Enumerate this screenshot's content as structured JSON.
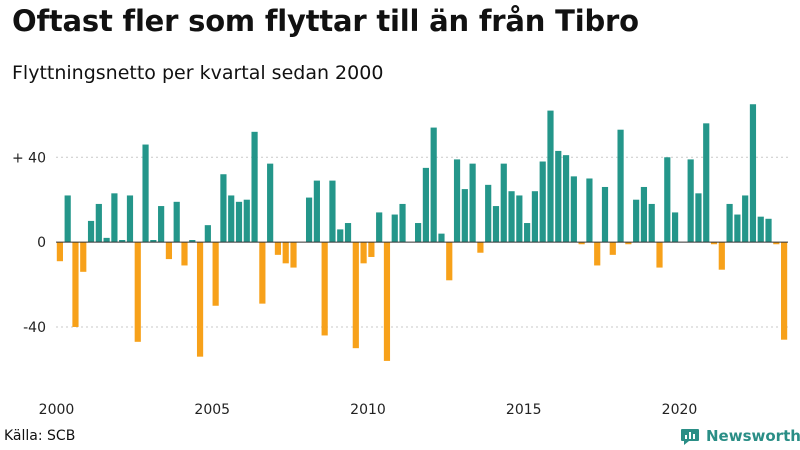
{
  "header": {
    "title": "Oftast fler som flyttar till än från Tibro",
    "subtitle": "Flyttningsnetto per kvartal sedan 2000"
  },
  "footer": {
    "source": "Källa: SCB",
    "brand": "Newsworthy"
  },
  "colors": {
    "positive": "#24968a",
    "negative": "#f7a11a",
    "brand": "#2a8e86",
    "zero_line": "#333333"
  },
  "chart_data": {
    "type": "bar",
    "title": "Oftast fler som flyttar till än från Tibro",
    "subtitle": "Flyttningsnetto per kvartal sedan 2000",
    "xlabel": "",
    "ylabel": "",
    "ylim": [
      -65,
      67
    ],
    "yticks": [
      {
        "value": 40,
        "label": "+ 40"
      },
      {
        "value": 0,
        "label": "0"
      },
      {
        "value": -40,
        "label": "-40"
      }
    ],
    "xticks": [
      {
        "value": 2000,
        "label": "2000"
      },
      {
        "value": 2005,
        "label": "2005"
      },
      {
        "value": 2010,
        "label": "2010"
      },
      {
        "value": 2015,
        "label": "2015"
      },
      {
        "value": 2020,
        "label": "2020"
      }
    ],
    "start_year": 2000,
    "periods_per_year": 4,
    "values": [
      -9,
      22,
      -40,
      -14,
      10,
      18,
      2,
      23,
      1,
      22,
      -47,
      46,
      1,
      17,
      -8,
      19,
      -11,
      1,
      -54,
      8,
      -30,
      32,
      22,
      19,
      20,
      52,
      -29,
      37,
      -6,
      -10,
      -12,
      0,
      21,
      29,
      -44,
      29,
      6,
      9,
      -50,
      -10,
      -7,
      14,
      -56,
      13,
      18,
      0,
      9,
      35,
      54,
      4,
      -18,
      39,
      25,
      37,
      -5,
      27,
      17,
      37,
      24,
      22,
      9,
      24,
      38,
      62,
      43,
      41,
      31,
      -1,
      30,
      -11,
      26,
      -6,
      53,
      -1,
      20,
      26,
      18,
      -12,
      40,
      14,
      0,
      39,
      23,
      56,
      -1,
      -13,
      18,
      13,
      22,
      65,
      12,
      11,
      -1,
      -46
    ]
  }
}
